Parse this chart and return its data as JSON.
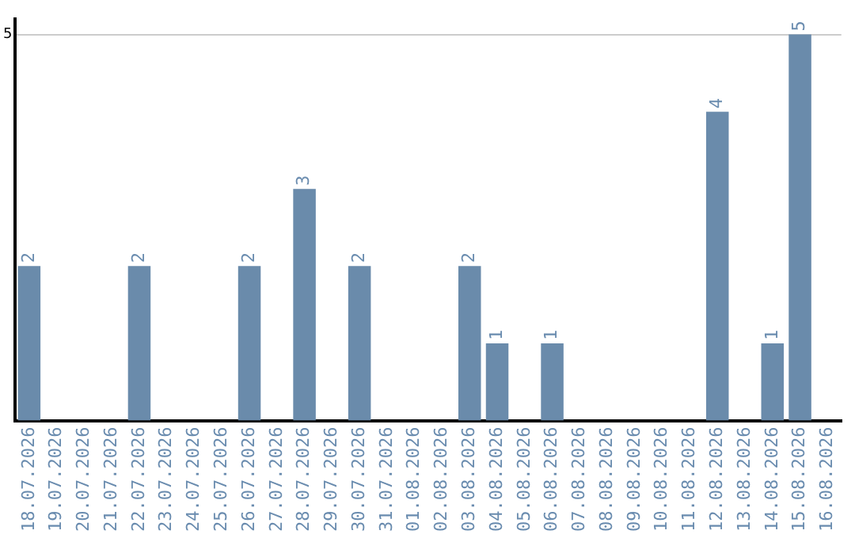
{
  "chart_data": {
    "type": "bar",
    "categories": [
      "18.07.2026",
      "19.07.2026",
      "20.07.2026",
      "21.07.2026",
      "22.07.2026",
      "23.07.2026",
      "24.07.2026",
      "25.07.2026",
      "26.07.2026",
      "27.07.2026",
      "28.07.2026",
      "29.07.2026",
      "30.07.2026",
      "31.07.2026",
      "01.08.2026",
      "02.08.2026",
      "03.08.2026",
      "04.08.2026",
      "05.08.2026",
      "06.08.2026",
      "07.08.2026",
      "08.08.2026",
      "09.08.2026",
      "10.08.2026",
      "11.08.2026",
      "12.08.2026",
      "13.08.2026",
      "14.08.2026",
      "15.08.2026",
      "16.08.2026"
    ],
    "values": [
      2,
      null,
      null,
      null,
      2,
      null,
      null,
      null,
      2,
      null,
      3,
      null,
      2,
      null,
      null,
      null,
      2,
      1,
      null,
      1,
      null,
      null,
      null,
      null,
      null,
      4,
      null,
      1,
      5,
      null
    ],
    "color": "#6a8bab",
    "ylim": [
      0,
      5.2
    ],
    "yticks": [
      5
    ],
    "grid": "y",
    "legend": false,
    "data_labels": true
  }
}
